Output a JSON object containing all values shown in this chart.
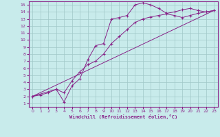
{
  "xlabel": "Windchill (Refroidissement éolien,°C)",
  "ylabel": "",
  "bg_color": "#c8ebeb",
  "line_color": "#882288",
  "grid_color": "#a0c8c8",
  "xlim": [
    -0.5,
    23.5
  ],
  "ylim": [
    0.5,
    15.5
  ],
  "xticks": [
    0,
    1,
    2,
    3,
    4,
    5,
    6,
    7,
    8,
    9,
    10,
    11,
    12,
    13,
    14,
    15,
    16,
    17,
    18,
    19,
    20,
    21,
    22,
    23
  ],
  "yticks": [
    1,
    2,
    3,
    4,
    5,
    6,
    7,
    8,
    9,
    10,
    11,
    12,
    13,
    14,
    15
  ],
  "line1_x": [
    0,
    1,
    2,
    3,
    4,
    5,
    6,
    7,
    8,
    9,
    10,
    11,
    12,
    13,
    14,
    15,
    16,
    17,
    18,
    19,
    20,
    21,
    22,
    23
  ],
  "line1_y": [
    2.0,
    2.2,
    2.5,
    3.0,
    1.2,
    3.5,
    4.5,
    7.2,
    9.2,
    9.5,
    13.0,
    13.2,
    13.5,
    15.0,
    15.3,
    15.0,
    14.5,
    13.8,
    14.0,
    14.3,
    14.5,
    14.2,
    14.0,
    14.2
  ],
  "line2_x": [
    0,
    3,
    4,
    5,
    6,
    7,
    8,
    9,
    10,
    11,
    12,
    13,
    14,
    15,
    16,
    17,
    18,
    19,
    20,
    21,
    22,
    23
  ],
  "line2_y": [
    2.0,
    3.0,
    2.5,
    4.2,
    5.5,
    6.5,
    7.0,
    8.0,
    9.5,
    10.5,
    11.5,
    12.5,
    13.0,
    13.3,
    13.5,
    13.7,
    13.5,
    13.2,
    13.5,
    13.8,
    14.0,
    14.2
  ],
  "line3_x": [
    0,
    23
  ],
  "line3_y": [
    2.0,
    14.2
  ]
}
